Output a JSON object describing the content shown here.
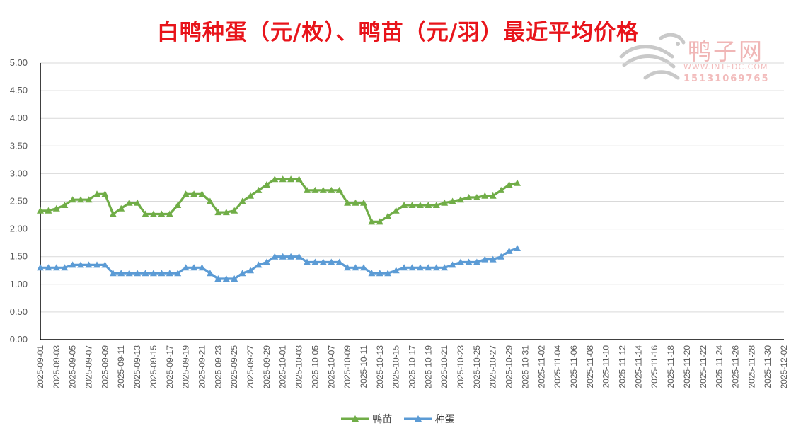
{
  "title": "白鸭种蛋（元/枚）、鸭苗（元/羽）最近平均价格",
  "watermark": {
    "name": "鸭子网",
    "site": "WWW.INTEDC.COM",
    "phone": "15131069765"
  },
  "colors": {
    "title": "#e8141b",
    "duckling": "#70ad47",
    "egg": "#5b9bd5",
    "grid": "#d9d9d9",
    "axis": "#000000"
  },
  "chart_data": {
    "type": "line",
    "title": "白鸭种蛋（元/枚）、鸭苗（元/羽）最近平均价格",
    "ylim": [
      0,
      5
    ],
    "ystep": 0.5,
    "y_tick_labels": [
      "0.00",
      "0.50",
      "1.00",
      "1.50",
      "2.00",
      "2.50",
      "3.00",
      "3.50",
      "4.00",
      "4.50",
      "5.00"
    ],
    "grid": true,
    "legend_position": "bottom",
    "x_range": [
      "2025-09-01",
      "2025-12-02"
    ],
    "x_tick_labels": [
      "2025-09-01",
      "2025-09-03",
      "2025-09-05",
      "2025-09-07",
      "2025-09-09",
      "2025-09-11",
      "2025-09-13",
      "2025-09-15",
      "2025-09-17",
      "2025-09-19",
      "2025-09-21",
      "2025-09-23",
      "2025-09-25",
      "2025-09-27",
      "2025-09-29",
      "2025-10-01",
      "2025-10-03",
      "2025-10-05",
      "2025-10-07",
      "2025-10-09",
      "2025-10-11",
      "2025-10-13",
      "2025-10-15",
      "2025-10-17",
      "2025-10-19",
      "2025-10-21",
      "2025-10-23",
      "2025-10-25",
      "2025-10-27",
      "2025-10-29",
      "2025-10-31",
      "2025-11-02",
      "2025-11-04",
      "2025-11-06",
      "2025-11-08",
      "2025-11-10",
      "2025-11-12",
      "2025-11-14",
      "2025-11-16",
      "2025-11-18",
      "2025-11-20",
      "2025-11-22",
      "2025-11-24",
      "2025-11-26",
      "2025-11-28",
      "2025-11-30",
      "2025-12-02"
    ],
    "x": [
      "2025-09-01",
      "2025-09-02",
      "2025-09-03",
      "2025-09-04",
      "2025-09-05",
      "2025-09-06",
      "2025-09-07",
      "2025-09-08",
      "2025-09-09",
      "2025-09-10",
      "2025-09-11",
      "2025-09-12",
      "2025-09-13",
      "2025-09-14",
      "2025-09-15",
      "2025-09-16",
      "2025-09-17",
      "2025-09-18",
      "2025-09-19",
      "2025-09-20",
      "2025-09-21",
      "2025-09-22",
      "2025-09-23",
      "2025-09-24",
      "2025-09-25",
      "2025-09-26",
      "2025-09-27",
      "2025-09-28",
      "2025-09-29",
      "2025-09-30",
      "2025-10-01",
      "2025-10-02",
      "2025-10-03",
      "2025-10-04",
      "2025-10-05",
      "2025-10-06",
      "2025-10-07",
      "2025-10-08",
      "2025-10-09",
      "2025-10-10",
      "2025-10-11",
      "2025-10-12",
      "2025-10-13",
      "2025-10-14",
      "2025-10-15",
      "2025-10-16",
      "2025-10-17",
      "2025-10-18",
      "2025-10-19",
      "2025-10-20",
      "2025-10-21",
      "2025-10-22",
      "2025-10-23",
      "2025-10-24",
      "2025-10-25",
      "2025-10-26",
      "2025-10-27",
      "2025-10-28",
      "2025-10-29",
      "2025-10-30",
      "2025-10-31"
    ],
    "series": [
      {
        "name": "鸭苗",
        "color": "#70ad47",
        "values": [
          2.33,
          2.33,
          2.37,
          2.43,
          2.53,
          2.53,
          2.53,
          2.63,
          2.63,
          2.27,
          2.37,
          2.47,
          2.47,
          2.27,
          2.27,
          2.27,
          2.27,
          2.43,
          2.63,
          2.63,
          2.63,
          2.5,
          2.3,
          2.3,
          2.33,
          2.5,
          2.6,
          2.7,
          2.8,
          2.9,
          2.9,
          2.9,
          2.9,
          2.7,
          2.7,
          2.7,
          2.7,
          2.7,
          2.47,
          2.47,
          2.47,
          2.13,
          2.13,
          2.23,
          2.33,
          2.43,
          2.43,
          2.43,
          2.43,
          2.43,
          2.47,
          2.5,
          2.53,
          2.57,
          2.57,
          2.6,
          2.6,
          2.7,
          2.8,
          2.83,
          null
        ]
      },
      {
        "name": "种蛋",
        "color": "#5b9bd5",
        "values": [
          1.3,
          1.3,
          1.3,
          1.3,
          1.35,
          1.35,
          1.35,
          1.35,
          1.35,
          1.2,
          1.2,
          1.2,
          1.2,
          1.2,
          1.2,
          1.2,
          1.2,
          1.2,
          1.3,
          1.3,
          1.3,
          1.2,
          1.1,
          1.1,
          1.1,
          1.2,
          1.25,
          1.35,
          1.4,
          1.5,
          1.5,
          1.5,
          1.5,
          1.4,
          1.4,
          1.4,
          1.4,
          1.4,
          1.3,
          1.3,
          1.3,
          1.2,
          1.2,
          1.2,
          1.25,
          1.3,
          1.3,
          1.3,
          1.3,
          1.3,
          1.3,
          1.35,
          1.4,
          1.4,
          1.4,
          1.45,
          1.45,
          1.5,
          1.6,
          1.65,
          null
        ]
      }
    ]
  }
}
